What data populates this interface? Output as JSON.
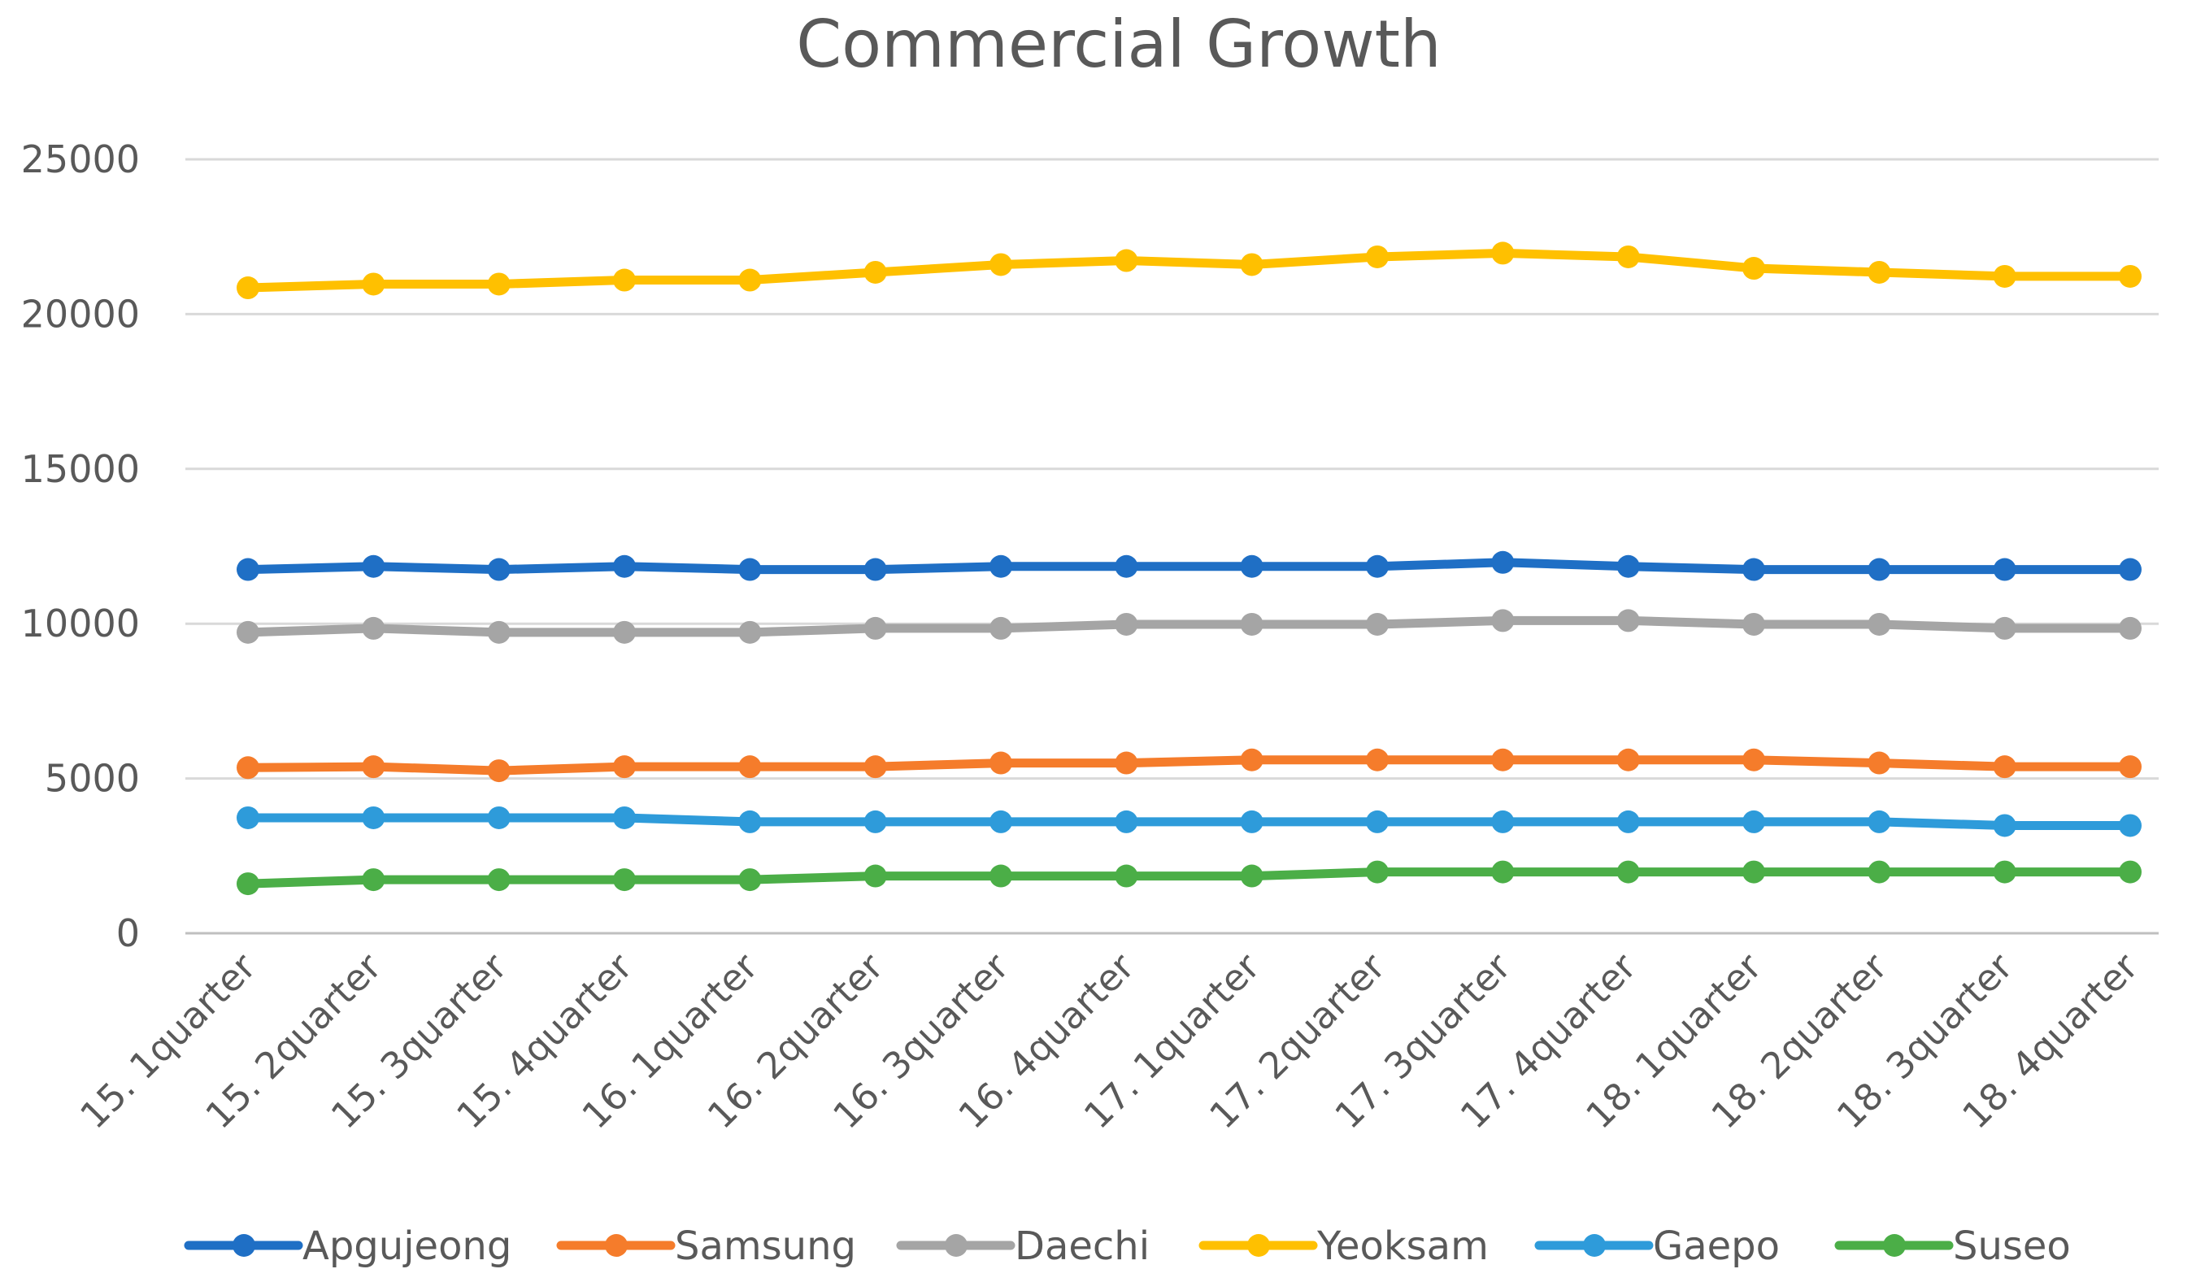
{
  "chart_data": {
    "type": "line",
    "title": "Commercial Growth",
    "xlabel": "",
    "ylabel": "",
    "ylim": [
      0,
      25000
    ],
    "yticks": [
      0,
      5000,
      10000,
      15000,
      20000,
      25000
    ],
    "grid": true,
    "legend_position": "bottom",
    "categories": [
      "15. 1quarter",
      "15. 2quarter",
      "15. 3quarter",
      "15. 4quarter",
      "16. 1quarter",
      "16. 2quarter",
      "16. 3quarter",
      "16. 4quarter",
      "17. 1quarter",
      "17. 2quarter",
      "17. 3quarter",
      "17. 4quarter",
      "18. 1quarter",
      "18. 2quarter",
      "18. 3quarter",
      "18. 4quarter"
    ],
    "series": [
      {
        "name": "Apgujeong",
        "color": "#1F6FC5",
        "values": [
          11750,
          11850,
          11750,
          11850,
          11750,
          11750,
          11850,
          11850,
          11850,
          11850,
          11980,
          11850,
          11750,
          11750,
          11750,
          11750
        ]
      },
      {
        "name": "Samsung",
        "color": "#F57C2B",
        "values": [
          5350,
          5380,
          5250,
          5380,
          5380,
          5380,
          5500,
          5500,
          5600,
          5600,
          5600,
          5600,
          5600,
          5500,
          5380,
          5380
        ]
      },
      {
        "name": "Daechi",
        "color": "#A5A5A5",
        "values": [
          9720,
          9850,
          9720,
          9720,
          9720,
          9850,
          9850,
          9980,
          9980,
          9980,
          10100,
          10100,
          9980,
          9980,
          9850,
          9850
        ]
      },
      {
        "name": "Yeoksam",
        "color": "#FFC000",
        "values": [
          20850,
          20970,
          20970,
          21100,
          21100,
          21350,
          21600,
          21730,
          21600,
          21850,
          21970,
          21850,
          21480,
          21350,
          21220,
          21220
        ]
      },
      {
        "name": "Gaepo",
        "color": "#2E9BDA",
        "values": [
          3730,
          3730,
          3730,
          3730,
          3600,
          3600,
          3600,
          3600,
          3600,
          3600,
          3600,
          3600,
          3600,
          3600,
          3480,
          3480
        ]
      },
      {
        "name": "Suseo",
        "color": "#4BAE47",
        "values": [
          1600,
          1730,
          1730,
          1730,
          1730,
          1850,
          1850,
          1850,
          1850,
          1980,
          1980,
          1980,
          1980,
          1980,
          1980,
          1980
        ]
      }
    ]
  }
}
